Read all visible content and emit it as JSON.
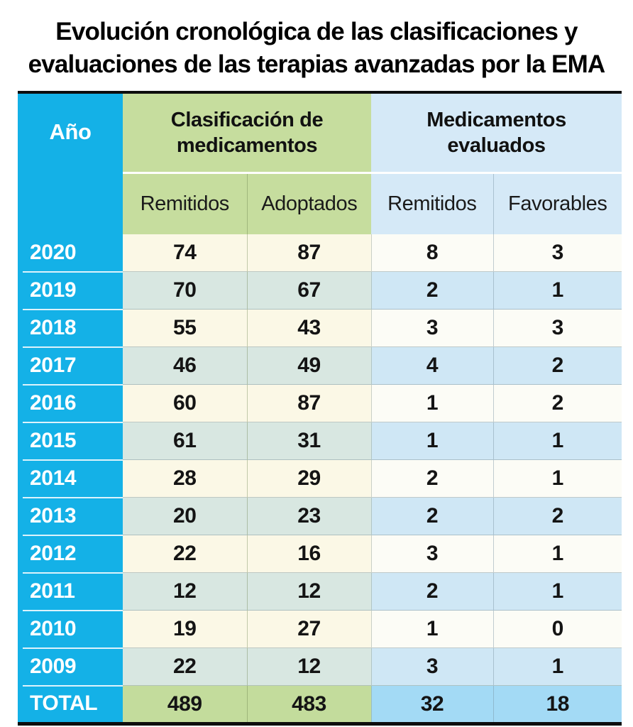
{
  "title": "Evolución cronológica de las clasificaciones y evaluaciones de las terapias avanzadas por la EMA",
  "colors": {
    "year_column": "#14b1e7",
    "group_green": "#c6dd9e",
    "group_blue": "#d5e9f7",
    "row_cream": "#fbf8e6",
    "row_teal": "#d8e7e1",
    "row_white": "#fcfcf6",
    "row_blue": "#cfe7f5",
    "total_green": "#c3dc9c",
    "total_blue": "#a3daf5",
    "year_text": "#ffffff",
    "value_text": "#141414",
    "border_black": "#0d0d0d"
  },
  "chart_data": {
    "type": "table",
    "title": "Evolución cronológica de las clasificaciones y evaluaciones de las terapias avanzadas por la EMA",
    "year_header": "Año",
    "groups": [
      {
        "label": "Clasificación de medicamentos",
        "columns": [
          "Remitidos",
          "Adoptados"
        ]
      },
      {
        "label": "Medicamentos evaluados",
        "columns": [
          "Remitidos",
          "Favorables"
        ]
      }
    ],
    "rows": [
      {
        "year": "2020",
        "values": [
          74,
          87,
          8,
          3
        ]
      },
      {
        "year": "2019",
        "values": [
          70,
          67,
          2,
          1
        ]
      },
      {
        "year": "2018",
        "values": [
          55,
          43,
          3,
          3
        ]
      },
      {
        "year": "2017",
        "values": [
          46,
          49,
          4,
          2
        ]
      },
      {
        "year": "2016",
        "values": [
          60,
          87,
          1,
          2
        ]
      },
      {
        "year": "2015",
        "values": [
          61,
          31,
          1,
          1
        ]
      },
      {
        "year": "2014",
        "values": [
          28,
          29,
          2,
          1
        ]
      },
      {
        "year": "2013",
        "values": [
          20,
          23,
          2,
          2
        ]
      },
      {
        "year": "2012",
        "values": [
          22,
          16,
          3,
          1
        ]
      },
      {
        "year": "2011",
        "values": [
          12,
          12,
          2,
          1
        ]
      },
      {
        "year": "2010",
        "values": [
          19,
          27,
          1,
          0
        ]
      },
      {
        "year": "2009",
        "values": [
          22,
          12,
          3,
          1
        ]
      }
    ],
    "total": {
      "label": "TOTAL",
      "values": [
        489,
        483,
        32,
        18
      ]
    }
  }
}
